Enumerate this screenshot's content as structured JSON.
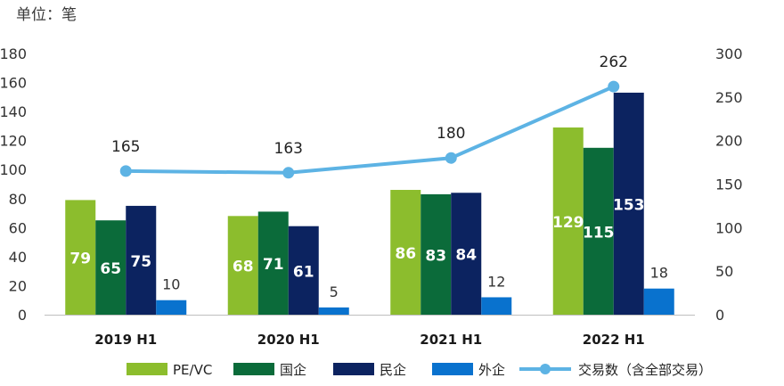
{
  "chart_data": {
    "type": "bar",
    "unit_label": "单位：笔",
    "categories": [
      "2019 H1",
      "2020 H1",
      "2021 H1",
      "2022 H1"
    ],
    "y_left": {
      "min": 0,
      "max": 180,
      "ticks": [
        "0",
        "20",
        "40",
        "60",
        "80",
        "100",
        "120",
        "140",
        "160",
        "180"
      ]
    },
    "y_right": {
      "min": 0,
      "max": 300,
      "ticks": [
        "0",
        "50",
        "100",
        "150",
        "200",
        "250",
        "300"
      ]
    },
    "series": [
      {
        "name": "PE/VC",
        "type": "bar",
        "color": "#8CBD2D",
        "values": [
          79,
          68,
          86,
          129
        ],
        "label_inside": true
      },
      {
        "name": "国企",
        "type": "bar",
        "color": "#0B6B3A",
        "values": [
          65,
          71,
          83,
          115
        ],
        "label_inside": true
      },
      {
        "name": "民企",
        "type": "bar",
        "color": "#0C2360",
        "values": [
          75,
          61,
          84,
          153
        ],
        "label_inside": true
      },
      {
        "name": "外企",
        "type": "bar",
        "color": "#0972CE",
        "values": [
          10,
          5,
          12,
          18
        ],
        "label_inside": false
      },
      {
        "name": "交易数（含全部交易）",
        "type": "line",
        "axis": "right",
        "color": "#5DB3E4",
        "values": [
          165,
          163,
          180,
          262
        ]
      }
    ],
    "grid": false,
    "legend_position": "bottom"
  }
}
